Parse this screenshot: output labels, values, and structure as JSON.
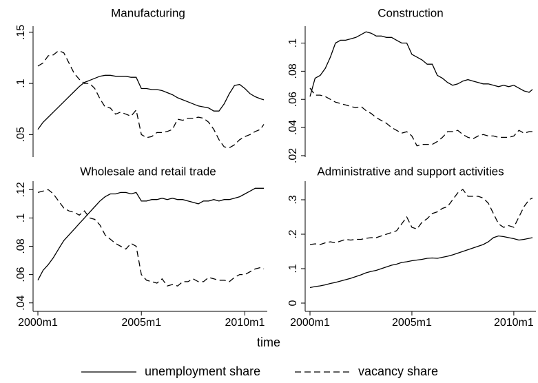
{
  "chart_data": [
    {
      "type": "line",
      "title": "Manufacturing",
      "x": [
        "2000m1",
        "2000m4",
        "2000m7",
        "2000m10",
        "2001m1",
        "2001m4",
        "2001m7",
        "2001m10",
        "2002m1",
        "2002m4",
        "2002m7",
        "2002m10",
        "2003m1",
        "2003m4",
        "2003m7",
        "2003m10",
        "2004m1",
        "2004m4",
        "2004m7",
        "2004m10",
        "2005m1",
        "2005m4",
        "2005m7",
        "2005m10",
        "2006m1",
        "2006m4",
        "2006m7",
        "2006m10",
        "2007m1",
        "2007m4",
        "2007m7",
        "2007m10",
        "2008m1",
        "2008m4",
        "2008m7",
        "2008m10",
        "2009m1",
        "2009m4",
        "2009m7",
        "2009m10",
        "2010m1",
        "2010m4",
        "2010m7",
        "2010m10",
        "2010m12"
      ],
      "xlim": [
        "2000m1",
        "2010m12"
      ],
      "ylim": [
        0.028,
        0.156
      ],
      "yticks": [
        {
          "value": 0.05,
          "label": ".05"
        },
        {
          "value": 0.1,
          "label": ".1"
        },
        {
          "value": 0.15,
          "label": ".15"
        }
      ],
      "series": [
        {
          "name": "unemployment share",
          "color": "#000000",
          "dash": "solid",
          "values": [
            0.055,
            0.062,
            0.067,
            0.072,
            0.077,
            0.082,
            0.087,
            0.092,
            0.097,
            0.101,
            0.103,
            0.105,
            0.107,
            0.108,
            0.108,
            0.107,
            0.107,
            0.107,
            0.106,
            0.106,
            0.095,
            0.095,
            0.094,
            0.094,
            0.093,
            0.091,
            0.089,
            0.086,
            0.084,
            0.082,
            0.08,
            0.078,
            0.077,
            0.076,
            0.073,
            0.073,
            0.08,
            0.09,
            0.098,
            0.099,
            0.095,
            0.09,
            0.087,
            0.085,
            0.084
          ]
        },
        {
          "name": "vacancy share",
          "color": "#000000",
          "dash": "dashed",
          "values": [
            0.117,
            0.12,
            0.127,
            0.128,
            0.132,
            0.13,
            0.12,
            0.11,
            0.104,
            0.1,
            0.1,
            0.095,
            0.085,
            0.077,
            0.076,
            0.07,
            0.072,
            0.07,
            0.068,
            0.074,
            0.05,
            0.047,
            0.048,
            0.052,
            0.052,
            0.053,
            0.055,
            0.065,
            0.064,
            0.066,
            0.066,
            0.067,
            0.066,
            0.062,
            0.055,
            0.045,
            0.038,
            0.037,
            0.04,
            0.045,
            0.048,
            0.05,
            0.053,
            0.055,
            0.06
          ]
        }
      ]
    },
    {
      "type": "line",
      "title": "Construction",
      "x": [
        "2000m1",
        "2000m4",
        "2000m7",
        "2000m10",
        "2001m1",
        "2001m4",
        "2001m7",
        "2001m10",
        "2002m1",
        "2002m4",
        "2002m7",
        "2002m10",
        "2003m1",
        "2003m4",
        "2003m7",
        "2003m10",
        "2004m1",
        "2004m4",
        "2004m7",
        "2004m10",
        "2005m1",
        "2005m4",
        "2005m7",
        "2005m10",
        "2006m1",
        "2006m4",
        "2006m7",
        "2006m10",
        "2007m1",
        "2007m4",
        "2007m7",
        "2007m10",
        "2008m1",
        "2008m4",
        "2008m7",
        "2008m10",
        "2009m1",
        "2009m4",
        "2009m7",
        "2009m10",
        "2010m1",
        "2010m4",
        "2010m7",
        "2010m10",
        "2010m12"
      ],
      "xlim": [
        "2000m1",
        "2010m12"
      ],
      "ylim": [
        0.019,
        0.112
      ],
      "yticks": [
        {
          "value": 0.02,
          "label": ".02"
        },
        {
          "value": 0.04,
          "label": ".04"
        },
        {
          "value": 0.06,
          "label": ".06"
        },
        {
          "value": 0.08,
          "label": ".08"
        },
        {
          "value": 0.1,
          "label": ".1"
        }
      ],
      "series": [
        {
          "color": "#000000",
          "dash": "solid",
          "values": [
            0.062,
            0.075,
            0.077,
            0.082,
            0.09,
            0.1,
            0.102,
            0.102,
            0.103,
            0.104,
            0.106,
            0.108,
            0.107,
            0.105,
            0.105,
            0.104,
            0.104,
            0.102,
            0.1,
            0.1,
            0.092,
            0.09,
            0.088,
            0.085,
            0.085,
            0.077,
            0.075,
            0.072,
            0.07,
            0.071,
            0.073,
            0.074,
            0.073,
            0.072,
            0.071,
            0.071,
            0.07,
            0.069,
            0.07,
            0.069,
            0.07,
            0.068,
            0.066,
            0.065,
            0.067
          ]
        },
        {
          "color": "#000000",
          "dash": "dashed",
          "values": [
            0.068,
            0.063,
            0.063,
            0.062,
            0.06,
            0.058,
            0.057,
            0.056,
            0.055,
            0.054,
            0.055,
            0.052,
            0.05,
            0.047,
            0.045,
            0.043,
            0.04,
            0.038,
            0.036,
            0.037,
            0.034,
            0.027,
            0.028,
            0.028,
            0.028,
            0.03,
            0.033,
            0.037,
            0.037,
            0.038,
            0.035,
            0.033,
            0.032,
            0.034,
            0.035,
            0.034,
            0.034,
            0.033,
            0.033,
            0.033,
            0.034,
            0.038,
            0.036,
            0.037,
            0.037
          ]
        }
      ]
    },
    {
      "type": "line",
      "title": "Wholesale and retail trade",
      "x": [
        "2000m1",
        "2000m4",
        "2000m7",
        "2000m10",
        "2001m1",
        "2001m4",
        "2001m7",
        "2001m10",
        "2002m1",
        "2002m4",
        "2002m7",
        "2002m10",
        "2003m1",
        "2003m4",
        "2003m7",
        "2003m10",
        "2004m1",
        "2004m4",
        "2004m7",
        "2004m10",
        "2005m1",
        "2005m4",
        "2005m7",
        "2005m10",
        "2006m1",
        "2006m4",
        "2006m7",
        "2006m10",
        "2007m1",
        "2007m4",
        "2007m7",
        "2007m10",
        "2008m1",
        "2008m4",
        "2008m7",
        "2008m10",
        "2009m1",
        "2009m4",
        "2009m7",
        "2009m10",
        "2010m1",
        "2010m4",
        "2010m7",
        "2010m10",
        "2010m12"
      ],
      "xlim": [
        "2000m1",
        "2010m12"
      ],
      "xticks": [
        "2000m1",
        "2005m1",
        "2010m1"
      ],
      "x_label": "time",
      "ylim": [
        0.035,
        0.126
      ],
      "yticks": [
        {
          "value": 0.04,
          "label": ".04"
        },
        {
          "value": 0.06,
          "label": ".06"
        },
        {
          "value": 0.08,
          "label": ".08"
        },
        {
          "value": 0.1,
          "label": ".1"
        },
        {
          "value": 0.12,
          "label": ".12"
        }
      ],
      "series": [
        {
          "color": "#000000",
          "dash": "solid",
          "values": [
            0.056,
            0.063,
            0.067,
            0.072,
            0.078,
            0.084,
            0.088,
            0.092,
            0.096,
            0.1,
            0.104,
            0.108,
            0.112,
            0.115,
            0.117,
            0.117,
            0.118,
            0.118,
            0.117,
            0.118,
            0.112,
            0.112,
            0.113,
            0.113,
            0.114,
            0.113,
            0.114,
            0.113,
            0.113,
            0.112,
            0.111,
            0.11,
            0.112,
            0.112,
            0.113,
            0.112,
            0.113,
            0.113,
            0.114,
            0.115,
            0.117,
            0.119,
            0.121,
            0.121,
            0.121
          ]
        },
        {
          "color": "#000000",
          "dash": "dashed",
          "values": [
            0.118,
            0.119,
            0.12,
            0.117,
            0.112,
            0.107,
            0.105,
            0.104,
            0.102,
            0.105,
            0.1,
            0.099,
            0.095,
            0.088,
            0.085,
            0.082,
            0.08,
            0.078,
            0.082,
            0.08,
            0.06,
            0.056,
            0.055,
            0.054,
            0.057,
            0.052,
            0.053,
            0.052,
            0.055,
            0.055,
            0.057,
            0.055,
            0.055,
            0.058,
            0.057,
            0.056,
            0.056,
            0.055,
            0.058,
            0.06,
            0.06,
            0.062,
            0.064,
            0.065,
            0.064
          ]
        }
      ]
    },
    {
      "type": "line",
      "title": "Administrative and support activities",
      "x": [
        "2000m1",
        "2000m4",
        "2000m7",
        "2000m10",
        "2001m1",
        "2001m4",
        "2001m7",
        "2001m10",
        "2002m1",
        "2002m4",
        "2002m7",
        "2002m10",
        "2003m1",
        "2003m4",
        "2003m7",
        "2003m10",
        "2004m1",
        "2004m4",
        "2004m7",
        "2004m10",
        "2005m1",
        "2005m4",
        "2005m7",
        "2005m10",
        "2006m1",
        "2006m4",
        "2006m7",
        "2006m10",
        "2007m1",
        "2007m4",
        "2007m7",
        "2007m10",
        "2008m1",
        "2008m4",
        "2008m7",
        "2008m10",
        "2009m1",
        "2009m4",
        "2009m7",
        "2009m10",
        "2010m1",
        "2010m4",
        "2010m7",
        "2010m10",
        "2010m12"
      ],
      "xlim": [
        "2000m1",
        "2010m12"
      ],
      "xticks": [
        "2000m1",
        "2005m1",
        "2010m1"
      ],
      "ylim": [
        -0.02,
        0.354
      ],
      "yticks": [
        0,
        {
          "value": 0.1,
          "label": ".1"
        },
        {
          "value": 0.2,
          "label": ".2"
        },
        {
          "value": 0.3,
          "label": ".3"
        }
      ],
      "series": [
        {
          "color": "#000000",
          "dash": "solid",
          "values": [
            0.045,
            0.048,
            0.05,
            0.053,
            0.057,
            0.06,
            0.064,
            0.068,
            0.072,
            0.077,
            0.082,
            0.088,
            0.092,
            0.095,
            0.1,
            0.105,
            0.11,
            0.113,
            0.118,
            0.12,
            0.123,
            0.125,
            0.127,
            0.13,
            0.131,
            0.13,
            0.133,
            0.136,
            0.14,
            0.145,
            0.15,
            0.155,
            0.16,
            0.165,
            0.17,
            0.178,
            0.19,
            0.195,
            0.193,
            0.19,
            0.187,
            0.183,
            0.185,
            0.188,
            0.19
          ]
        },
        {
          "color": "#000000",
          "dash": "dashed",
          "values": [
            0.17,
            0.172,
            0.17,
            0.175,
            0.178,
            0.175,
            0.18,
            0.185,
            0.183,
            0.185,
            0.185,
            0.188,
            0.19,
            0.19,
            0.195,
            0.2,
            0.205,
            0.21,
            0.23,
            0.25,
            0.22,
            0.215,
            0.235,
            0.245,
            0.26,
            0.265,
            0.275,
            0.28,
            0.3,
            0.32,
            0.33,
            0.31,
            0.31,
            0.31,
            0.305,
            0.29,
            0.26,
            0.23,
            0.22,
            0.225,
            0.22,
            0.25,
            0.28,
            0.3,
            0.305
          ]
        }
      ]
    }
  ]
}
